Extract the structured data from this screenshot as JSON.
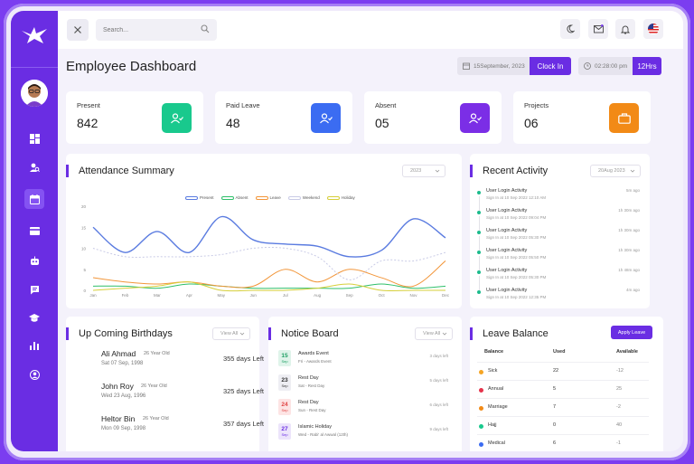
{
  "colors": {
    "accent": "#6a2de3",
    "green": "#19c98d",
    "blue": "#3b6cf2",
    "purple": "#7b2ee6",
    "orange": "#f28a16"
  },
  "topbar": {
    "search_placeholder": "Search..."
  },
  "page": {
    "title": "Employee Dashboard",
    "date": "15September, 2023",
    "clock_in": "Clock In",
    "time": "02:28:00 pm",
    "hours": "12Hrs"
  },
  "stats": [
    {
      "label": "Present",
      "value": "842",
      "icon": "users-check-icon"
    },
    {
      "label": "Paid Leave",
      "value": "48",
      "icon": "users-check-icon"
    },
    {
      "label": "Absent",
      "value": "05",
      "icon": "users-check-icon"
    },
    {
      "label": "Projects",
      "value": "06",
      "icon": "briefcase-icon"
    }
  ],
  "attendance": {
    "title": "Attendance Summary",
    "filter": "2023"
  },
  "chart_data": {
    "type": "line",
    "categories": [
      "Jan",
      "Feb",
      "Mar",
      "Apr",
      "May",
      "Jun",
      "Jul",
      "Aug",
      "Sep",
      "Oct",
      "Nov",
      "Dec"
    ],
    "ylim": [
      0,
      20
    ],
    "yticks": [
      "0",
      "5",
      "10",
      "15",
      "20"
    ],
    "series": [
      {
        "name": "Present",
        "color": "#5a7be0",
        "style": "solid",
        "values": [
          15,
          9,
          14,
          9,
          17.5,
          12,
          11,
          10.5,
          8,
          9.5,
          17,
          12.5
        ]
      },
      {
        "name": "Absent",
        "color": "#2fbf6a",
        "style": "solid",
        "values": [
          1,
          1,
          0.5,
          1.5,
          1,
          0.5,
          0.5,
          0.5,
          0.5,
          1.5,
          0.5,
          1
        ]
      },
      {
        "name": "Leave",
        "color": "#f2963a",
        "style": "solid",
        "values": [
          3,
          2,
          1.5,
          2,
          1,
          1,
          5,
          2,
          5,
          3,
          1,
          7
        ]
      },
      {
        "name": "Weekend",
        "color": "#c9cbe6",
        "style": "dashed",
        "values": [
          10,
          8,
          8,
          8,
          8.5,
          10,
          10,
          8,
          2.5,
          7,
          7,
          9
        ]
      },
      {
        "name": "Holiday",
        "color": "#d6cf3a",
        "style": "solid",
        "values": [
          0,
          0.5,
          1,
          2,
          0,
          0,
          0,
          0.5,
          1.5,
          0,
          0,
          0
        ]
      }
    ]
  },
  "activity": {
    "title": "Recent Activity",
    "filter": "20Aug 2023",
    "items": [
      {
        "name": "User Login Activity",
        "sub": "Sign In at 10 Sep 2022 12:10 AM",
        "time": "5m ago"
      },
      {
        "name": "User Login Activity",
        "sub": "Sign In at 10 Sep 2022 09:04 PM",
        "time": "1h 30m ago"
      },
      {
        "name": "User Login Activity",
        "sub": "Sign In at 10 Sep 2022 05:30 PM",
        "time": "1h 30m ago"
      },
      {
        "name": "User Login Activity",
        "sub": "Sign In at 10 Sep 2022 05:50 PM",
        "time": "1h 30m ago"
      },
      {
        "name": "User Login Activity",
        "sub": "Sign In at 10 Sep 2022 05:30 PM",
        "time": "1h 48m ago"
      },
      {
        "name": "User Login Activity",
        "sub": "Sign In at 10 Sep 2022 12:35 PM",
        "time": "4m ago"
      }
    ]
  },
  "birthdays": {
    "title": "Up Coming Birthdays",
    "filter": "View All",
    "items": [
      {
        "name": "Ali Ahmad",
        "age": "26 Year Old",
        "date": "Sat 07 Sep, 1998",
        "left": "355 days Left"
      },
      {
        "name": "John Roy",
        "age": "26 Year Old",
        "date": "Wed 23 Aug, 1996",
        "left": "325 days Left"
      },
      {
        "name": "Heltor Bin",
        "age": "26 Year Old",
        "date": "Mon 09 Sep, 1998",
        "left": "357 days Left"
      }
    ]
  },
  "notices": {
    "title": "Notice Board",
    "filter": "View All",
    "items": [
      {
        "day": "15",
        "month": "Sep",
        "title": "Awards Event",
        "sub": "Fri - Awards Event",
        "ago": "3 days left",
        "bg": "#dff4ea",
        "fg": "#1b9e62"
      },
      {
        "day": "23",
        "month": "Sep",
        "title": "Rest Day",
        "sub": "Sat - Rest Day",
        "ago": "5 days left",
        "bg": "#eeeef3",
        "fg": "#333333"
      },
      {
        "day": "24",
        "month": "Sep",
        "title": "Rest Day",
        "sub": "Sun - Rest Day",
        "ago": "6 days left",
        "bg": "#fde4e4",
        "fg": "#e04545"
      },
      {
        "day": "27",
        "month": "Sep",
        "title": "Islamic Holiday",
        "sub": "Wed - Rabi' al Awwal (12th)",
        "ago": "9 days left",
        "bg": "#ece4fb",
        "fg": "#6a2de3"
      }
    ]
  },
  "leave": {
    "title": "Leave Balance",
    "apply": "Apply Leave",
    "headers": [
      "Balance",
      "Used",
      "Available"
    ],
    "rows": [
      {
        "name": "Sick",
        "used": "22",
        "avail": "-12",
        "color": "#f5a524"
      },
      {
        "name": "Annual",
        "used": "5",
        "avail": "25",
        "color": "#e5334b"
      },
      {
        "name": "Marriage",
        "used": "7",
        "avail": "-2",
        "color": "#f28a16"
      },
      {
        "name": "Hajj",
        "used": "0",
        "avail": "40",
        "color": "#19c98d"
      },
      {
        "name": "Medical",
        "used": "6",
        "avail": "-1",
        "color": "#3b6cf2"
      }
    ]
  }
}
